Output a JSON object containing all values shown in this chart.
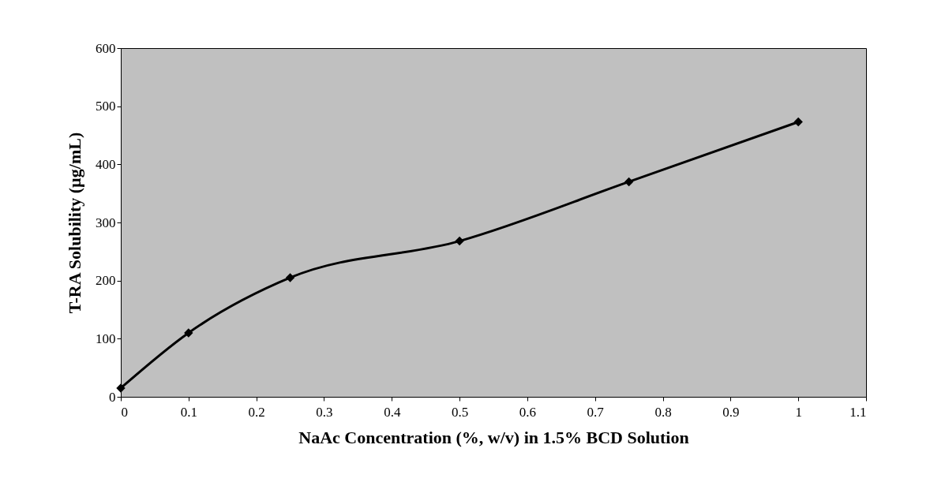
{
  "chart_data": {
    "type": "line",
    "xlabel": "NaAc Concentration (%, w/v) in 1.5% BCD Solution",
    "ylabel": "T-RA Solubility (µg/mL)",
    "x": [
      0,
      0.1,
      0.25,
      0.5,
      0.75,
      1
    ],
    "series": [
      {
        "color": "#000000",
        "values": [
          15,
          110,
          205,
          268,
          370,
          473
        ]
      }
    ],
    "xlim": [
      0,
      1.1
    ],
    "xticks": [
      0,
      0.1,
      0.2,
      0.3,
      0.4,
      0.5,
      0.6,
      0.7,
      0.8,
      0.9,
      1,
      1.1
    ],
    "ylim": [
      0,
      600
    ],
    "yticks": [
      0,
      100,
      200,
      300,
      400,
      500,
      600
    ],
    "grid": false,
    "legend": false,
    "marker": "diamond",
    "line_style": "solid"
  }
}
